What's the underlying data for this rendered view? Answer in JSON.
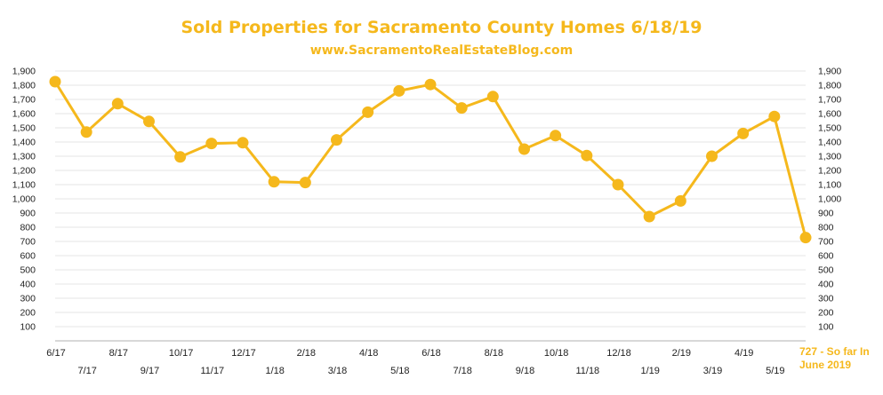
{
  "header": {
    "title": "Sold Properties for Sacramento County Homes 6/18/19",
    "subtitle": "www.SacramentoRealEstateBlog.com"
  },
  "colors": {
    "accent": "#f5b81c",
    "grid": "#e6e6e6",
    "axis": "#b0b0b0",
    "text": "#222222"
  },
  "chart_data": {
    "type": "line",
    "title": "Sold Properties for Sacramento County Homes 6/18/19",
    "subtitle": "www.SacramentoRealEstateBlog.com",
    "xlabel": "",
    "ylabel": "",
    "ylim": [
      0,
      1900
    ],
    "yticks": [
      100,
      200,
      300,
      400,
      500,
      600,
      700,
      800,
      900,
      1000,
      1100,
      1200,
      1300,
      1400,
      1500,
      1600,
      1700,
      1800,
      1900
    ],
    "ytick_labels": [
      "100",
      "200",
      "300",
      "400",
      "500",
      "600",
      "700",
      "800",
      "900",
      "1,000",
      "1,100",
      "1,200",
      "1,300",
      "1,400",
      "1,500",
      "1,600",
      "1,700",
      "1,800",
      "1,900"
    ],
    "secondary_axis": "right (mirrors left)",
    "grid": true,
    "legend": "none",
    "categories": [
      "6/17",
      "7/17",
      "8/17",
      "9/17",
      "10/17",
      "11/17",
      "12/17",
      "1/18",
      "2/18",
      "3/18",
      "4/18",
      "5/18",
      "6/18",
      "7/18",
      "8/18",
      "9/18",
      "10/18",
      "11/18",
      "12/18",
      "1/19",
      "2/19",
      "3/19",
      "4/19",
      "5/19",
      "6/19"
    ],
    "tick_labels": [
      "6/17",
      "7/17",
      "8/17",
      "9/17",
      "10/17",
      "11/17",
      "12/17",
      "1/18",
      "2/18",
      "3/18",
      "4/18",
      "5/18",
      "6/18",
      "7/18",
      "8/18",
      "9/18",
      "10/18",
      "11/18",
      "12/18",
      "1/19",
      "2/19",
      "3/19",
      "4/19",
      "5/19"
    ],
    "values": [
      1825,
      1470,
      1670,
      1545,
      1295,
      1390,
      1395,
      1120,
      1115,
      1415,
      1610,
      1760,
      1805,
      1640,
      1720,
      1350,
      1445,
      1305,
      1100,
      875,
      985,
      1300,
      1460,
      1580,
      727
    ],
    "annotation": {
      "line1": "727 - So far In",
      "line2": "June 2019"
    }
  }
}
